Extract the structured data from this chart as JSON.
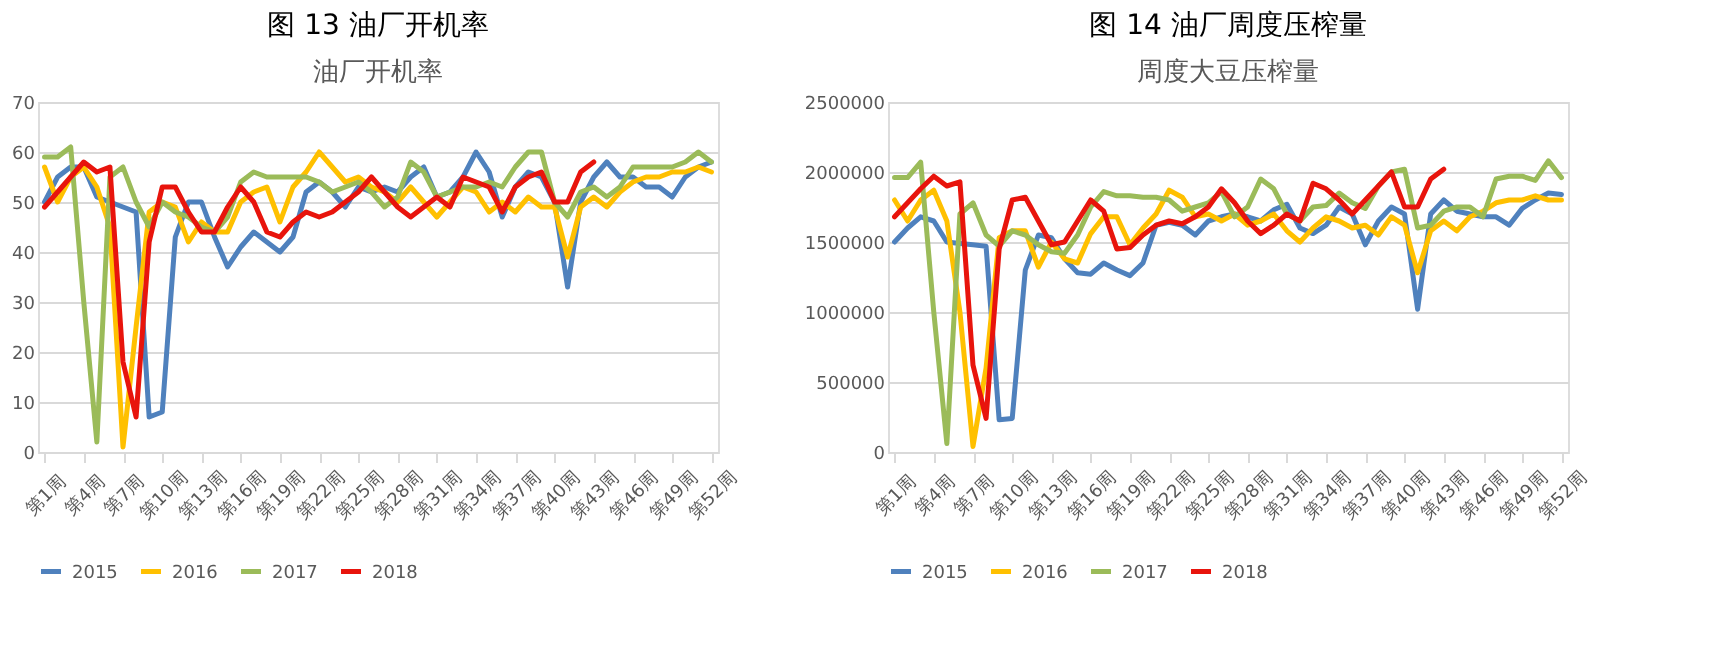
{
  "chart_data": [
    {
      "type": "line",
      "title": "图 13 油厂开机率",
      "subtitle": "油厂开机率",
      "categories": [
        "第1周",
        null,
        null,
        "第4周",
        null,
        null,
        "第7周",
        null,
        null,
        "第10周",
        null,
        null,
        "第13周",
        null,
        null,
        "第16周",
        null,
        null,
        "第19周",
        null,
        null,
        "第22周",
        null,
        null,
        "第25周",
        null,
        null,
        "第28周",
        null,
        null,
        "第31周",
        null,
        null,
        "第34周",
        null,
        null,
        "第37周",
        null,
        null,
        "第40周",
        null,
        null,
        "第43周",
        null,
        null,
        "第46周",
        null,
        null,
        "第49周",
        null,
        null,
        "第52周"
      ],
      "series": [
        {
          "name": "2015",
          "color": "#4f81bd",
          "values": [
            50,
            55,
            57,
            57,
            51,
            50,
            49,
            48,
            7,
            8,
            43,
            50,
            50,
            43,
            37,
            41,
            44,
            42,
            40,
            43,
            52,
            54,
            52,
            49,
            53,
            52,
            53,
            52,
            55,
            57,
            51,
            52,
            55,
            60,
            56,
            47,
            53,
            56,
            55,
            50,
            33,
            50,
            55,
            58,
            55,
            55,
            53,
            53,
            51,
            55,
            57,
            58
          ]
        },
        {
          "name": "2016",
          "color": "#ffc000",
          "values": [
            57,
            50,
            55,
            57,
            53,
            45,
            1,
            25,
            48,
            50,
            49,
            42,
            46,
            44,
            44,
            50,
            52,
            53,
            46,
            53,
            56,
            60,
            57,
            54,
            55,
            53,
            52,
            50,
            53,
            50,
            47,
            50,
            53,
            52,
            48,
            50,
            48,
            51,
            49,
            49,
            39,
            49,
            51,
            49,
            52,
            54,
            55,
            55,
            56,
            56,
            57,
            56
          ]
        },
        {
          "name": "2017",
          "color": "#9bbb59",
          "values": [
            59,
            59,
            61,
            30,
            2,
            55,
            57,
            50,
            45,
            50,
            48,
            47,
            45,
            44,
            47,
            54,
            56,
            55,
            55,
            55,
            55,
            54,
            52,
            53,
            54,
            52,
            49,
            51,
            58,
            56,
            51,
            52,
            53,
            53,
            54,
            53,
            57,
            60,
            60,
            50,
            47,
            52,
            53,
            51,
            53,
            57,
            57,
            57,
            57,
            58,
            60,
            58
          ]
        },
        {
          "name": "2018",
          "color": "#e8140c",
          "values": [
            49,
            52,
            55,
            58,
            56,
            57,
            18,
            7,
            42,
            53,
            53,
            48,
            44,
            44,
            49,
            53,
            50,
            44,
            43,
            46,
            48,
            47,
            48,
            50,
            52,
            55,
            52,
            49,
            47,
            49,
            51,
            49,
            55,
            54,
            53,
            48,
            53,
            55,
            56,
            50,
            50,
            56,
            58,
            null,
            null,
            null,
            null,
            null,
            null,
            null,
            null,
            null
          ]
        }
      ],
      "ylim": [
        0,
        70
      ],
      "yticks": [
        0,
        10,
        20,
        30,
        40,
        50,
        60,
        70
      ],
      "grid": "y",
      "legend": "bottom"
    },
    {
      "type": "line",
      "title": "图 14 油厂周度压榨量",
      "subtitle": "周度大豆压榨量",
      "categories": [
        "第1周",
        null,
        null,
        "第4周",
        null,
        null,
        "第7周",
        null,
        null,
        "第10周",
        null,
        null,
        "第13周",
        null,
        null,
        "第16周",
        null,
        null,
        "第19周",
        null,
        null,
        "第22周",
        null,
        null,
        "第25周",
        null,
        null,
        "第28周",
        null,
        null,
        "第31周",
        null,
        null,
        "第34周",
        null,
        null,
        "第37周",
        null,
        null,
        "第40周",
        null,
        null,
        "第43周",
        null,
        null,
        "第46周",
        null,
        null,
        "第49周",
        null,
        null,
        "第52周"
      ],
      "series": [
        {
          "name": "2015",
          "color": "#4f81bd",
          "values": [
            1500000,
            1600000,
            1680000,
            1650000,
            1500000,
            1490000,
            1480000,
            1470000,
            230000,
            240000,
            1300000,
            1550000,
            1530000,
            1380000,
            1280000,
            1270000,
            1350000,
            1300000,
            1260000,
            1350000,
            1620000,
            1640000,
            1620000,
            1550000,
            1650000,
            1680000,
            1700000,
            1680000,
            1650000,
            1730000,
            1770000,
            1600000,
            1560000,
            1620000,
            1750000,
            1700000,
            1480000,
            1650000,
            1750000,
            1700000,
            1020000,
            1700000,
            1800000,
            1720000,
            1700000,
            1680000,
            1680000,
            1620000,
            1740000,
            1800000,
            1850000,
            1840000
          ]
        },
        {
          "name": "2016",
          "color": "#ffc000",
          "values": [
            1800000,
            1650000,
            1800000,
            1870000,
            1650000,
            1000000,
            40000,
            600000,
            1530000,
            1580000,
            1580000,
            1320000,
            1500000,
            1380000,
            1350000,
            1560000,
            1680000,
            1680000,
            1480000,
            1600000,
            1700000,
            1870000,
            1820000,
            1680000,
            1700000,
            1650000,
            1700000,
            1620000,
            1650000,
            1700000,
            1580000,
            1500000,
            1600000,
            1680000,
            1650000,
            1600000,
            1620000,
            1550000,
            1680000,
            1620000,
            1280000,
            1580000,
            1650000,
            1580000,
            1680000,
            1720000,
            1780000,
            1800000,
            1800000,
            1830000,
            1800000,
            1800000
          ]
        },
        {
          "name": "2017",
          "color": "#9bbb59",
          "values": [
            1960000,
            1960000,
            2070000,
            1000000,
            60000,
            1700000,
            1780000,
            1550000,
            1470000,
            1580000,
            1550000,
            1480000,
            1430000,
            1420000,
            1550000,
            1750000,
            1860000,
            1830000,
            1830000,
            1820000,
            1820000,
            1800000,
            1720000,
            1750000,
            1780000,
            1860000,
            1680000,
            1750000,
            1950000,
            1880000,
            1700000,
            1650000,
            1750000,
            1760000,
            1850000,
            1780000,
            1740000,
            1900000,
            2000000,
            2020000,
            1600000,
            1620000,
            1720000,
            1750000,
            1750000,
            1680000,
            1950000,
            1970000,
            1970000,
            1940000,
            2080000,
            1960000
          ]
        },
        {
          "name": "2018",
          "color": "#e8140c",
          "values": [
            1680000,
            1780000,
            1880000,
            1970000,
            1900000,
            1930000,
            620000,
            240000,
            1450000,
            1800000,
            1820000,
            1650000,
            1480000,
            1500000,
            1650000,
            1800000,
            1720000,
            1450000,
            1460000,
            1550000,
            1620000,
            1650000,
            1630000,
            1680000,
            1750000,
            1880000,
            1780000,
            1650000,
            1560000,
            1620000,
            1700000,
            1650000,
            1920000,
            1880000,
            1800000,
            1700000,
            1800000,
            1900000,
            2000000,
            1750000,
            1750000,
            1950000,
            2020000,
            null,
            null,
            null,
            null,
            null,
            null,
            null,
            null,
            null
          ]
        }
      ],
      "ylim": [
        0,
        2500000
      ],
      "yticks": [
        0,
        500000,
        1000000,
        1500000,
        2000000,
        2500000
      ],
      "grid": "y",
      "legend": "bottom"
    }
  ]
}
